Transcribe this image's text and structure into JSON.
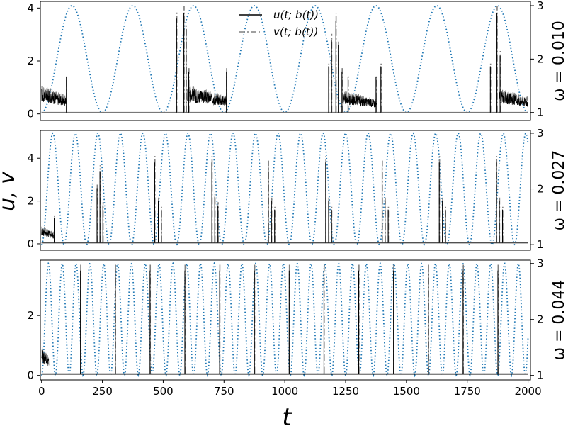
{
  "figure": {
    "y_axis_label": "u, v",
    "x_axis_label": "t"
  },
  "legend": {
    "entries": [
      {
        "label": "u(t; b(t))",
        "color": "#000000",
        "dash": "solid"
      },
      {
        "label": "v(t; b(t))",
        "color": "#808080",
        "dash": "dashdot"
      }
    ]
  },
  "chart_data": [
    {
      "type": "line",
      "title": "",
      "right_label": "ω = 0.010",
      "omega": 0.01,
      "xlabel": "t",
      "ylabel": "u, v",
      "xlim": [
        -5,
        2010
      ],
      "ylim": [
        -0.25,
        4.25
      ],
      "ylim_right": [
        0.85,
        3.08
      ],
      "yticks": [
        "0",
        "2",
        "4"
      ],
      "yticks_right": [
        "1",
        "2",
        "3"
      ],
      "xticks": [],
      "spike_times": [
        102,
        555,
        585,
        594,
        605,
        760,
        1180,
        1192,
        1210,
        1220,
        1235,
        1260,
        1375,
        1395,
        1845,
        1872,
        1885
      ],
      "spike_u_peaks": [
        1.4,
        3.6,
        3.8,
        3.2,
        1.6,
        1.6,
        1.8,
        2.8,
        3.5,
        2.6,
        1.6,
        1.4,
        1.4,
        1.8,
        1.8,
        3.8,
        2.2
      ],
      "oscillation_bands": [
        [
          0,
          100,
          1.0
        ],
        [
          600,
          760,
          1.0
        ],
        [
          1235,
          1380,
          0.8
        ],
        [
          1880,
          2000,
          0.9
        ]
      ],
      "series": [
        {
          "name": "u(t; b(t))",
          "color": "#000000",
          "axis": "left"
        },
        {
          "name": "v(t; b(t))",
          "color": "#808080",
          "axis": "left"
        },
        {
          "color": "#1f77b4",
          "axis": "right",
          "b_min": 1,
          "b_max": 3
        }
      ],
      "grid": false
    },
    {
      "type": "line",
      "title": "",
      "right_label": "ω = 0.027",
      "omega": 0.027,
      "xlabel": "t",
      "ylabel": "u, v",
      "xlim": [
        -5,
        2010
      ],
      "ylim": [
        -0.3,
        5.3
      ],
      "ylim_right": [
        0.9,
        3.05
      ],
      "yticks": [
        "0",
        "2",
        "4"
      ],
      "yticks_right": [
        "1",
        "2",
        "3"
      ],
      "xticks": [],
      "spike_times": [
        52,
        228,
        240,
        252,
        465,
        480,
        492,
        700,
        712,
        725,
        932,
        945,
        958,
        1168,
        1180,
        1192,
        1400,
        1412,
        1425,
        1635,
        1648,
        1660,
        1870,
        1882,
        1895
      ],
      "spike_u_peaks": [
        1.2,
        2.6,
        3.4,
        1.8,
        3.8,
        2.0,
        1.6,
        3.8,
        2.2,
        1.8,
        3.6,
        2.0,
        1.6,
        3.8,
        2.0,
        1.6,
        3.6,
        2.0,
        1.6,
        3.8,
        2.0,
        1.6,
        3.8,
        2.0,
        1.6
      ],
      "oscillation_bands": [
        [
          0,
          50,
          0.8
        ]
      ],
      "series": [
        {
          "name": "u(t; b(t))",
          "color": "#000000",
          "axis": "left"
        },
        {
          "name": "v(t; b(t))",
          "color": "#808080",
          "axis": "left"
        },
        {
          "color": "#1f77b4",
          "axis": "right",
          "b_min": 1,
          "b_max": 3
        }
      ],
      "grid": false
    },
    {
      "type": "line",
      "title": "",
      "right_label": "ω = 0.044",
      "omega": 0.044,
      "xlabel": "t",
      "ylabel": "u, v",
      "xlim": [
        -5,
        2010
      ],
      "ylim": [
        -0.15,
        3.85
      ],
      "ylim_right": [
        0.92,
        3.06
      ],
      "yticks": [
        "0",
        "2"
      ],
      "yticks_right": [
        "1",
        "2",
        "3"
      ],
      "xticks": [
        "0",
        "250",
        "500",
        "750",
        "1000",
        "1250",
        "1500",
        "1750",
        "2000"
      ],
      "xtick_values": [
        0,
        250,
        500,
        750,
        1000,
        1250,
        1500,
        1750,
        2000
      ],
      "spike_times": [
        160,
        303,
        446,
        589,
        732,
        875,
        1018,
        1161,
        1304,
        1447,
        1590,
        1733,
        1876
      ],
      "spike_u_peaks": [
        3.5,
        3.5,
        3.5,
        3.5,
        3.5,
        3.5,
        3.5,
        3.5,
        3.5,
        3.5,
        3.5,
        3.5,
        3.5
      ],
      "oscillation_bands": [
        [
          0,
          30,
          0.9
        ]
      ],
      "series": [
        {
          "name": "u(t; b(t))",
          "color": "#000000",
          "axis": "left"
        },
        {
          "name": "v(t; b(t))",
          "color": "#808080",
          "axis": "left"
        },
        {
          "color": "#1f77b4",
          "axis": "right",
          "b_min": 1,
          "b_max": 3
        }
      ],
      "grid": false
    }
  ]
}
